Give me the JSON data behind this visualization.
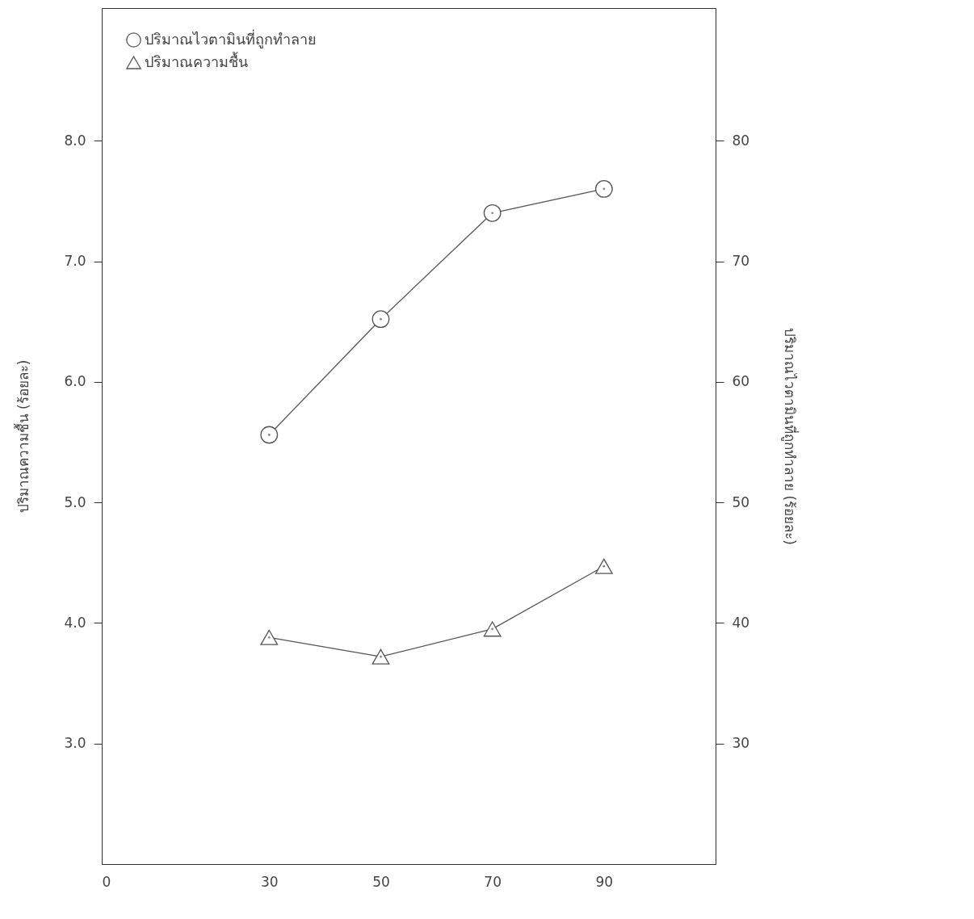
{
  "chart_data": {
    "type": "line",
    "ylabel": "ปริมาณความชื้น (ร้อยละ)",
    "y2label": "ปริมาณไวตามินที่ถูกทำลาย (ร้อยละ)",
    "x": [
      30,
      50,
      70,
      90
    ],
    "xlim": [
      0,
      110
    ],
    "xticks": [
      0,
      30,
      50,
      70,
      90
    ],
    "ylim": [
      2,
      9.1
    ],
    "yticks": [
      {
        "value": 3,
        "label": "3.0"
      },
      {
        "value": 4,
        "label": "4.0"
      },
      {
        "value": 5,
        "label": "5.0"
      },
      {
        "value": 6,
        "label": "6.0"
      },
      {
        "value": 7,
        "label": "7.0"
      },
      {
        "value": 8,
        "label": "8.0"
      }
    ],
    "y2lim": [
      20,
      91
    ],
    "y2ticks": [
      30,
      40,
      50,
      60,
      70,
      80
    ],
    "series": [
      {
        "name": "ปริมาณไวตามินที่ถูกทำลาย",
        "color": "#555555",
        "axis": "y2",
        "marker": "circle",
        "values": [
          55.6,
          65.2,
          74.0,
          76.0
        ]
      },
      {
        "name": "ปริมาณความชื้น",
        "color": "#555555",
        "axis": "y",
        "marker": "triangle",
        "values": [
          3.88,
          3.72,
          3.95,
          4.47
        ]
      }
    ],
    "grid": false,
    "legend": "top left",
    "line_style": "solid"
  }
}
